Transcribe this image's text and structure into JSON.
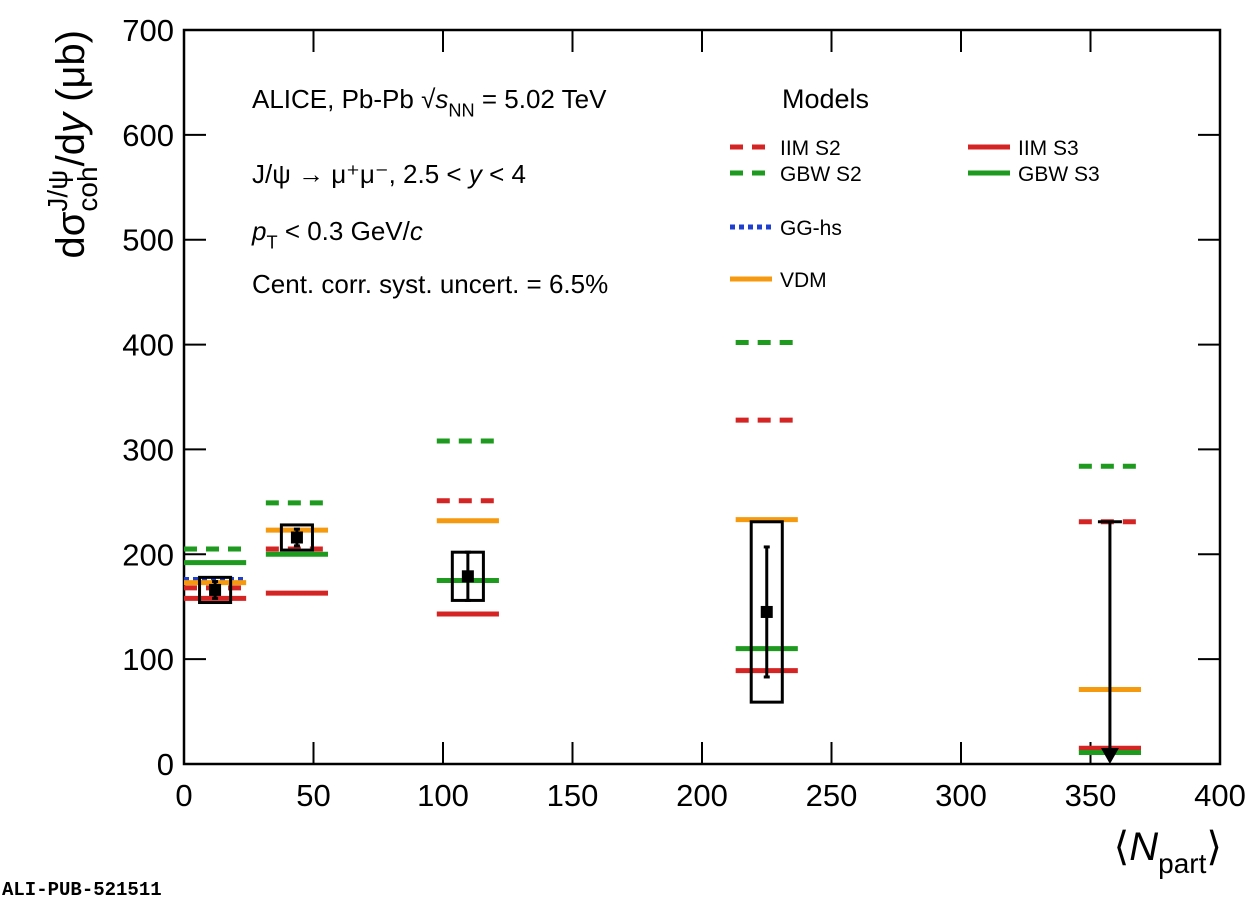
{
  "chart_data": {
    "type": "errorbar",
    "y_label": [
      {
        "text": "dσ"
      },
      {
        "text": "J/ψ",
        "sup": true
      },
      {
        "text": "coh",
        "sub": true,
        "stack": true
      },
      {
        "text": "/d"
      },
      {
        "text": "y",
        "italic": true
      },
      {
        "text": " (μb)"
      }
    ],
    "x_label": [
      {
        "text": "⟨"
      },
      {
        "text": "N",
        "italic": true
      },
      {
        "text": "part",
        "sub": true
      },
      {
        "text": "⟩"
      }
    ],
    "annotations": [
      [
        {
          "text": "ALICE, Pb-Pb "
        },
        {
          "text": "√"
        },
        {
          "text": "s",
          "italic": true
        },
        {
          "text": "NN",
          "sub": true
        },
        {
          "text": " = 5.02 TeV"
        }
      ],
      [
        {
          "text": "J/ψ → μ⁺μ⁻, 2.5 < "
        },
        {
          "text": "y",
          "italic": true
        },
        {
          "text": " < 4"
        }
      ],
      [
        {
          "text": "p",
          "italic": true
        },
        {
          "text": "T",
          "sub": true
        },
        {
          "text": " < 0.3 GeV/"
        },
        {
          "text": "c",
          "italic": true
        }
      ],
      [
        {
          "text": "Cent. corr. syst. uncert. = 6.5%"
        }
      ]
    ],
    "legend_title": "Models",
    "watermark": "ALI-PUB-521511",
    "x": [
      12,
      43.6,
      109.6,
      225,
      357.5
    ],
    "values": [
      166,
      216,
      179,
      145,
      null
    ],
    "stat_errors": [
      8,
      8,
      23,
      62,
      null
    ],
    "syst_errors": [
      12,
      12,
      23,
      86,
      null
    ],
    "upper_limits": [
      null,
      null,
      null,
      null,
      231
    ],
    "series": [
      {
        "name": "IIM S2",
        "color": "#d42424",
        "style": "dashed",
        "values": [
          168,
          205,
          251,
          328,
          231
        ]
      },
      {
        "name": "GBW S2",
        "color": "#1e9a1e",
        "style": "dashed",
        "values": [
          205,
          249,
          308,
          402,
          284
        ]
      },
      {
        "name": "GG-hs",
        "color": "#1f3fd0",
        "style": "dotted",
        "values": [
          176,
          null,
          null,
          null,
          null
        ]
      },
      {
        "name": "VDM",
        "color": "#f5990f",
        "style": "solid",
        "values": [
          173,
          223,
          232,
          233,
          71
        ]
      },
      {
        "name": "IIM S3",
        "color": "#d42424",
        "style": "solid",
        "values": [
          158,
          163,
          143,
          89,
          15
        ]
      },
      {
        "name": "GBW S3",
        "color": "#1e9a1e",
        "style": "solid",
        "values": [
          192,
          200,
          175,
          110,
          11
        ]
      }
    ],
    "xlim": [
      0,
      400
    ],
    "ylim": [
      0,
      700
    ],
    "xticks": [
      0,
      50,
      100,
      150,
      200,
      250,
      300,
      350,
      400
    ],
    "yticks": [
      0,
      100,
      200,
      300,
      400,
      500,
      600,
      700
    ],
    "grid": false
  }
}
